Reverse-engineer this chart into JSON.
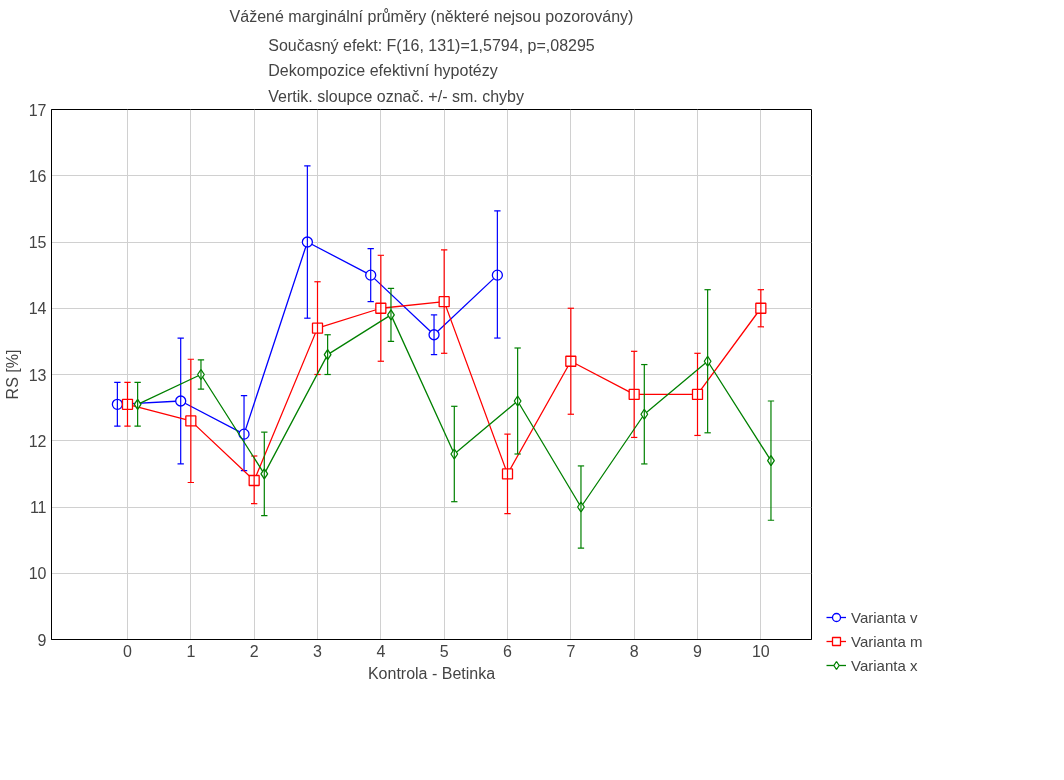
{
  "chart_data": {
    "type": "line",
    "title": "Vážené marginální průměry (některé nejsou pozorovány)",
    "subtitle": "Současný efekt: F(16, 131)=1,5794, p=,08295\nDekompozice efektivní hypotézy\nVertik. sloupce označ. +/- sm. chyby",
    "xlabel": "Kontrola - Betinka",
    "ylabel": "RS [%]",
    "categories": [
      "0",
      "1",
      "2",
      "3",
      "4",
      "5",
      "6",
      "7",
      "8",
      "9",
      "10"
    ],
    "ylim": [
      9,
      17
    ],
    "yticks": [
      9,
      10,
      11,
      12,
      13,
      14,
      15,
      16,
      17
    ],
    "grid": true,
    "legend": "bottom right",
    "series": [
      {
        "name": "Varianta v",
        "color": "#0000ff",
        "marker": "circle",
        "values": [
          12.55,
          12.6,
          12.1,
          15.0,
          14.5,
          13.6,
          14.5,
          null,
          null,
          null,
          null
        ],
        "errors": [
          [
            12.22,
            12.88
          ],
          [
            11.65,
            13.55
          ],
          [
            11.55,
            12.68
          ],
          [
            13.85,
            16.15
          ],
          [
            14.1,
            14.9
          ],
          [
            13.3,
            13.9
          ],
          [
            13.55,
            15.47
          ],
          null,
          null,
          null,
          null
        ]
      },
      {
        "name": "Varianta m",
        "color": "#ff0000",
        "marker": "square",
        "values": [
          12.55,
          12.3,
          11.4,
          13.7,
          14.0,
          14.1,
          11.5,
          13.2,
          12.7,
          12.7,
          14.0
        ],
        "errors": [
          [
            12.22,
            12.88
          ],
          [
            11.37,
            13.23
          ],
          [
            11.05,
            11.77
          ],
          [
            13.0,
            14.4
          ],
          [
            13.2,
            14.8
          ],
          [
            13.32,
            14.88
          ],
          [
            10.9,
            12.1
          ],
          [
            12.4,
            14.0
          ],
          [
            12.05,
            13.35
          ],
          [
            12.08,
            13.32
          ],
          [
            13.72,
            14.28
          ]
        ]
      },
      {
        "name": "Varianta x",
        "color": "#008000",
        "marker": "diamond",
        "values": [
          12.55,
          13.0,
          11.5,
          13.3,
          13.9,
          11.8,
          12.6,
          11.0,
          12.4,
          13.2,
          11.7
        ],
        "errors": [
          [
            12.22,
            12.88
          ],
          [
            12.78,
            13.22
          ],
          [
            10.87,
            12.13
          ],
          [
            13.0,
            13.6
          ],
          [
            13.5,
            14.3
          ],
          [
            11.08,
            12.52
          ],
          [
            11.8,
            13.4
          ],
          [
            10.38,
            11.62
          ],
          [
            11.65,
            13.15
          ],
          [
            12.12,
            14.28
          ],
          [
            10.8,
            12.6
          ]
        ]
      }
    ]
  }
}
